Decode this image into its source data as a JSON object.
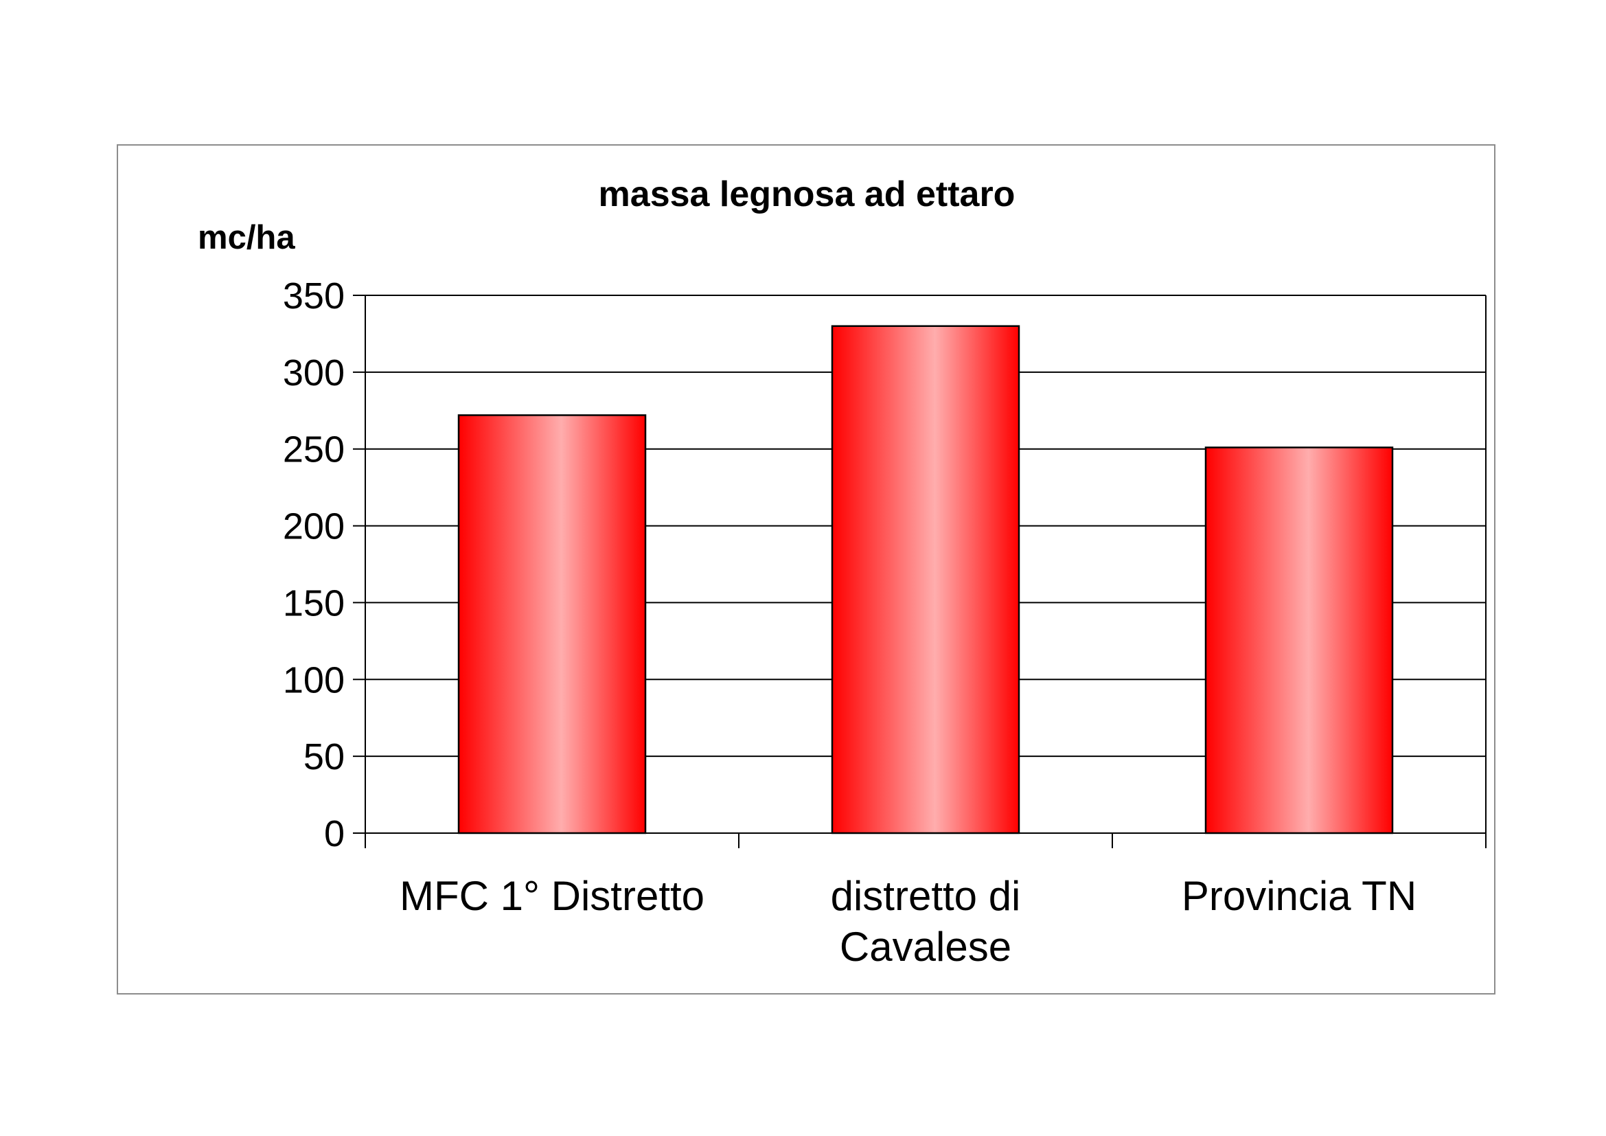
{
  "colors": {
    "bar_edge": "#ff0000",
    "bar_center": "#ffadad",
    "bar_outline": "#000000",
    "grid": "#000000",
    "frame": "#8c8c8c"
  },
  "chart_data": {
    "type": "bar",
    "title": "massa legnosa ad ettaro",
    "ylabel": "mc/ha",
    "xlabel": "",
    "categories": [
      [
        "MFC 1° Distretto"
      ],
      [
        "distretto di",
        "Cavalese"
      ],
      [
        "Provincia TN"
      ]
    ],
    "values": [
      272,
      330,
      251
    ],
    "ylim": [
      0,
      350
    ],
    "yticks": [
      "0",
      "50",
      "100",
      "150",
      "200",
      "250",
      "300",
      "350"
    ],
    "ytick_values": [
      0,
      50,
      100,
      150,
      200,
      250,
      300,
      350
    ],
    "grid": true,
    "legend": "none",
    "bar_fill": "horizontal gradient red-pink-red"
  }
}
